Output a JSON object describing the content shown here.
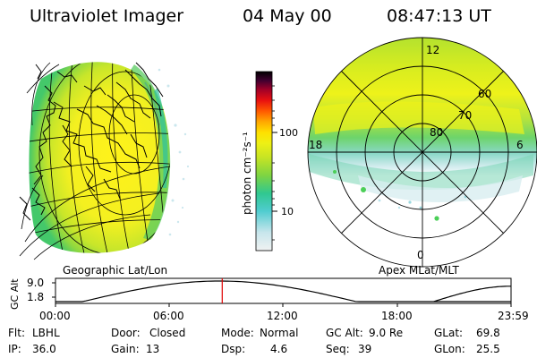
{
  "header": {
    "instrument": "Ultraviolet Imager",
    "date": "04 May 00",
    "time": "08:47:13 UT"
  },
  "left_panel": {
    "label": "Geographic Lat/Lon"
  },
  "right_panel": {
    "label": "Apex MLat/MLT",
    "mlt_labels": [
      "12",
      "18",
      "6",
      "0"
    ],
    "mlat_labels": [
      "60",
      "70",
      "80"
    ]
  },
  "colorbar": {
    "unit_label": "photon cm⁻²s⁻¹",
    "ticks": [
      "100",
      "10"
    ],
    "colors": [
      "#e8eef0",
      "#c8e6ec",
      "#7fd3dc",
      "#2ec7c0",
      "#5cd05a",
      "#a6de2c",
      "#e6ef10",
      "#ffe400",
      "#ffb000",
      "#ff7000",
      "#ff2000",
      "#c80010",
      "#7a0030",
      "#2a0030",
      "#000000"
    ]
  },
  "timeline": {
    "axis_label": "GC Alt",
    "y_ticks": [
      "9.0",
      "1.8"
    ],
    "x_ticks": [
      "00:00",
      "06:00",
      "12:00",
      "18:00",
      "23:59"
    ],
    "marker_time_fraction": 0.366,
    "marker_color": "#e00000"
  },
  "status": {
    "flt": {
      "label": "Flt:",
      "value": "LBHL"
    },
    "ip": {
      "label": "IP:",
      "value": "36.0"
    },
    "door": {
      "label": "Door:",
      "value": "Closed"
    },
    "gain": {
      "label": "Gain:",
      "value": "13"
    },
    "mode": {
      "label": "Mode:",
      "value": "Normal"
    },
    "dsp": {
      "label": "Dsp:",
      "value": "4.6"
    },
    "gcalt": {
      "label": "GC Alt:",
      "value": "9.0 Re"
    },
    "seq": {
      "label": "Seq:",
      "value": "39"
    },
    "glat": {
      "label": "GLat:",
      "value": "69.8"
    },
    "glon": {
      "label": "GLon:",
      "value": "25.5"
    }
  }
}
